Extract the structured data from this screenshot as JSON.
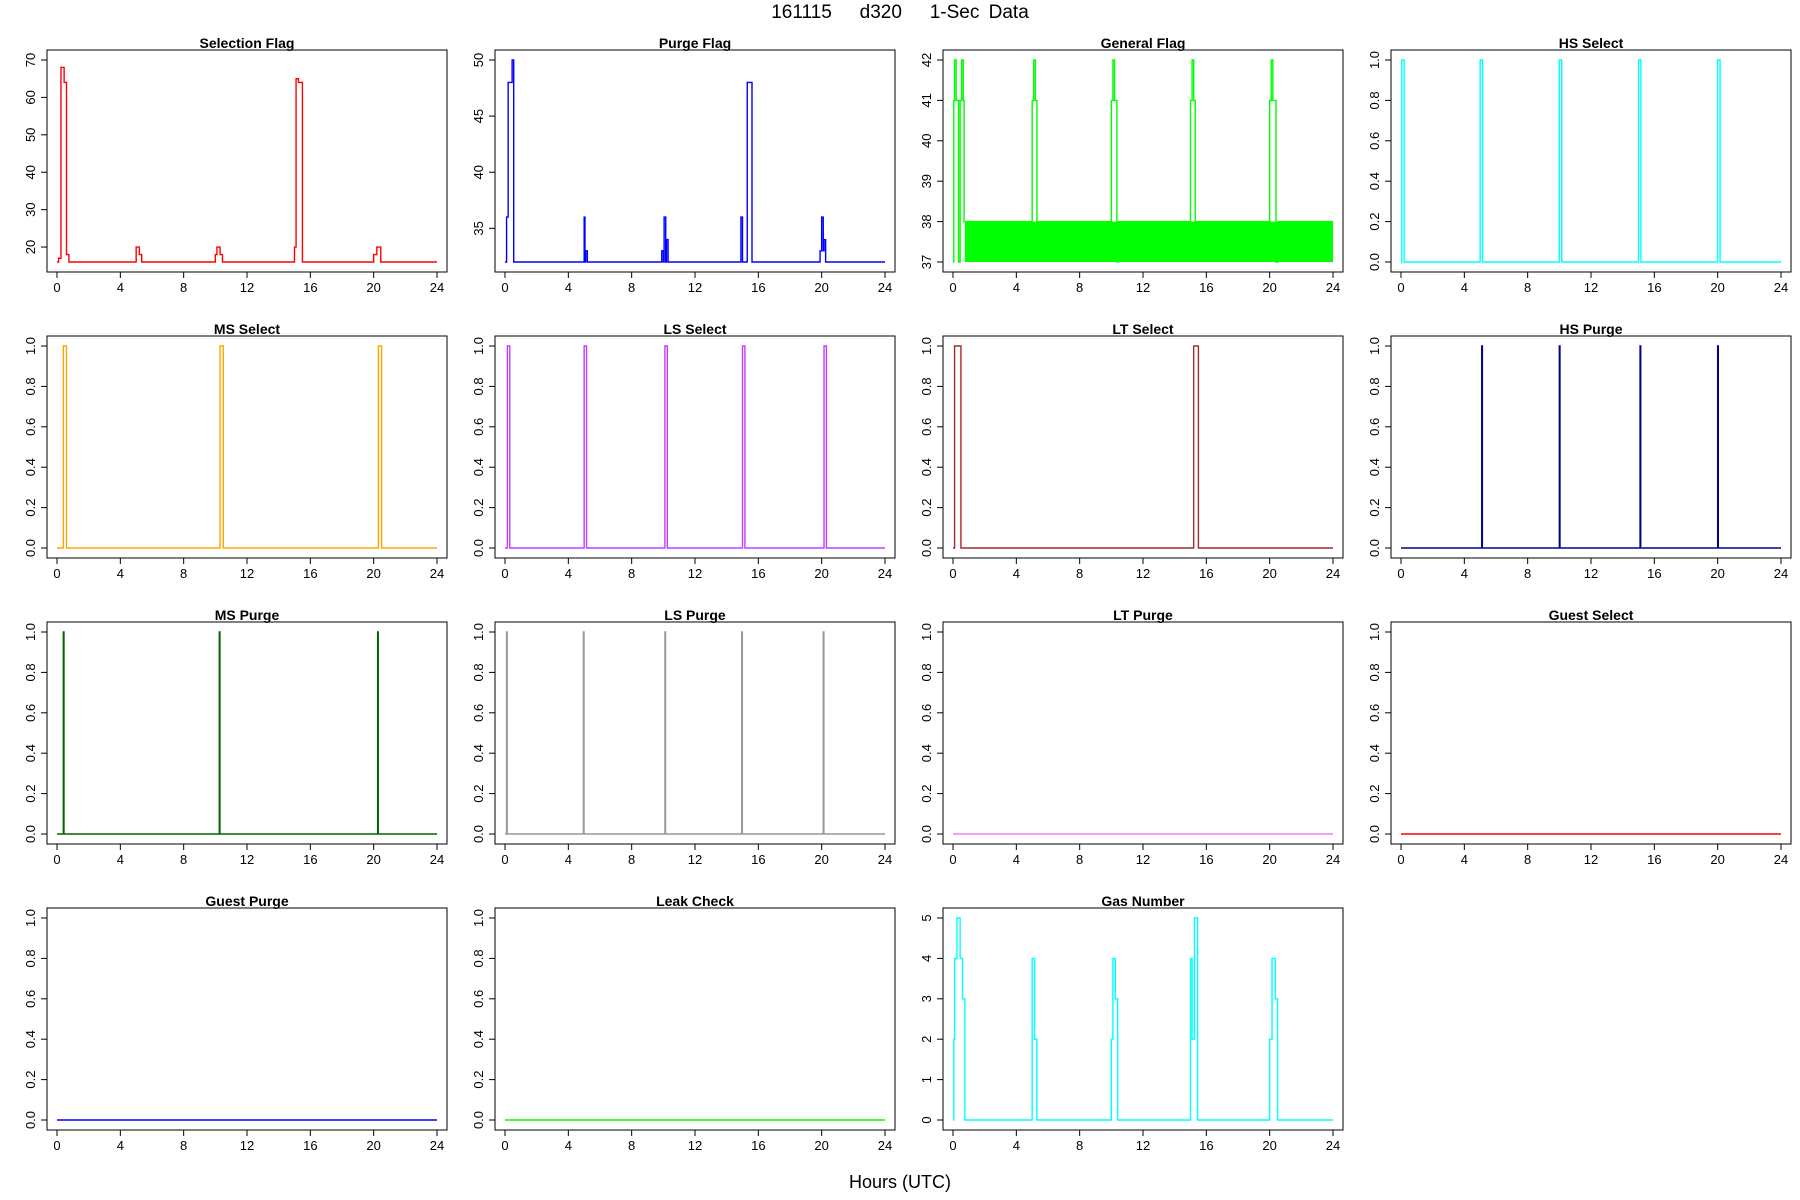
{
  "page": {
    "title": "161115   d320   1-Sec Data",
    "xlabel": "Hours (UTC)"
  },
  "chart_data": [
    {
      "type": "line",
      "title": "Selection Flag",
      "color": "#ff0000",
      "xlim": [
        0,
        24
      ],
      "ylim": [
        16,
        70
      ],
      "xticks": [
        0,
        4,
        8,
        12,
        16,
        20,
        24
      ],
      "yticks": [
        20,
        30,
        40,
        50,
        60,
        70
      ],
      "x": [
        0,
        0.1,
        0.1,
        0.25,
        0.25,
        0.45,
        0.45,
        0.6,
        0.6,
        0.75,
        0.75,
        5.0,
        5.0,
        5.2,
        5.2,
        5.35,
        5.35,
        10.0,
        10.0,
        10.1,
        10.1,
        10.3,
        10.3,
        10.45,
        10.45,
        15.0,
        15.0,
        15.1,
        15.1,
        15.25,
        15.25,
        15.5,
        15.5,
        20.0,
        20.0,
        20.2,
        20.2,
        20.45,
        20.45,
        24
      ],
      "y": [
        16,
        16,
        17,
        17,
        68,
        68,
        64,
        64,
        18,
        18,
        16,
        16,
        20,
        20,
        18,
        18,
        16,
        16,
        18,
        18,
        20,
        20,
        18,
        18,
        16,
        16,
        20,
        20,
        65,
        65,
        64,
        64,
        16,
        16,
        18,
        18,
        20,
        20,
        16,
        16
      ]
    },
    {
      "type": "line",
      "title": "Purge Flag",
      "color": "#0000ff",
      "xlim": [
        0,
        24
      ],
      "ylim": [
        32,
        50
      ],
      "xticks": [
        0,
        4,
        8,
        12,
        16,
        20,
        24
      ],
      "yticks": [
        35,
        40,
        45,
        50
      ],
      "x": [
        0,
        0.1,
        0.1,
        0.2,
        0.2,
        0.45,
        0.45,
        0.55,
        0.55,
        5.0,
        5.0,
        5.05,
        5.05,
        5.1,
        5.1,
        5.2,
        5.2,
        9.9,
        9.9,
        10.0,
        10.0,
        10.05,
        10.05,
        10.15,
        10.15,
        10.2,
        10.2,
        10.3,
        10.3,
        14.9,
        14.9,
        15.0,
        15.0,
        15.3,
        15.3,
        15.6,
        15.6,
        19.9,
        19.9,
        20.0,
        20.0,
        20.1,
        20.1,
        20.15,
        20.15,
        20.25,
        20.25,
        24
      ],
      "y": [
        32,
        32,
        36,
        36,
        48,
        48,
        50,
        50,
        32,
        32,
        36,
        36,
        32,
        32,
        33,
        33,
        32,
        32,
        33,
        33,
        32,
        32,
        36,
        36,
        32,
        32,
        34,
        34,
        32,
        32,
        36,
        36,
        32,
        32,
        48,
        48,
        32,
        32,
        33,
        33,
        36,
        36,
        33,
        33,
        34,
        34,
        32,
        32
      ]
    },
    {
      "type": "line",
      "title": "General Flag",
      "color": "#00ff00",
      "xlim": [
        0,
        24
      ],
      "ylim": [
        37,
        42
      ],
      "xticks": [
        0,
        4,
        8,
        12,
        16,
        20,
        24
      ],
      "yticks": [
        37,
        38,
        39,
        40,
        41,
        42
      ],
      "x": [
        0,
        0.05,
        0.05,
        0.1,
        0.1,
        0.2,
        0.2,
        0.35,
        0.35,
        0.45,
        0.45,
        0.55,
        0.55,
        0.65,
        0.65,
        0.7,
        0.7,
        5.0,
        5.0,
        5.1,
        5.1,
        5.2,
        5.2,
        5.3,
        5.3,
        10.0,
        10.0,
        10.1,
        10.1,
        10.2,
        10.2,
        10.35,
        10.35,
        10.45,
        10.45,
        15.0,
        15.0,
        15.1,
        15.1,
        15.2,
        15.2,
        15.3,
        15.3,
        20.0,
        20.0,
        20.1,
        20.1,
        20.2,
        20.2,
        20.4,
        20.4,
        20.55,
        20.55,
        24
      ],
      "y": [
        37,
        37,
        41,
        41,
        42,
        42,
        41,
        41,
        37,
        37,
        41,
        41,
        42,
        42,
        41,
        41,
        38,
        38,
        41,
        41,
        42,
        42,
        41,
        41,
        38,
        38,
        41,
        41,
        42,
        42,
        41,
        41,
        37,
        37,
        38,
        38,
        41,
        41,
        42,
        42,
        41,
        41,
        38,
        38,
        41,
        41,
        42,
        42,
        41,
        41,
        37,
        37,
        38,
        38
      ],
      "fill_between": [
        37,
        38
      ],
      "fill_x": [
        0.75,
        24
      ]
    },
    {
      "type": "line",
      "title": "HS Select",
      "color": "#00ffff",
      "xlim": [
        0,
        24
      ],
      "ylim": [
        0,
        1
      ],
      "xticks": [
        0,
        4,
        8,
        12,
        16,
        20,
        24
      ],
      "yticks": [
        0.0,
        0.2,
        0.4,
        0.6,
        0.8,
        1.0
      ],
      "x": [
        0,
        0.05,
        0.05,
        0.2,
        0.2,
        5.0,
        5.0,
        5.15,
        5.15,
        10.0,
        10.0,
        10.15,
        10.15,
        15.0,
        15.0,
        15.15,
        15.15,
        20.0,
        20.0,
        20.15,
        20.15,
        24
      ],
      "y": [
        0,
        0,
        1,
        1,
        0,
        0,
        1,
        1,
        0,
        0,
        1,
        1,
        0,
        0,
        1,
        1,
        0,
        0,
        1,
        1,
        0,
        0
      ]
    },
    {
      "type": "line",
      "title": "MS Select",
      "color": "#ffa500",
      "xlim": [
        0,
        24
      ],
      "ylim": [
        0,
        1
      ],
      "xticks": [
        0,
        4,
        8,
        12,
        16,
        20,
        24
      ],
      "yticks": [
        0.0,
        0.2,
        0.4,
        0.6,
        0.8,
        1.0
      ],
      "x": [
        0,
        0.4,
        0.4,
        0.6,
        0.6,
        10.3,
        10.3,
        10.5,
        10.5,
        20.3,
        20.3,
        20.5,
        20.5,
        24
      ],
      "y": [
        0,
        0,
        1,
        1,
        0,
        0,
        1,
        1,
        0,
        0,
        1,
        1,
        0,
        0
      ]
    },
    {
      "type": "line",
      "title": "LS Select",
      "color": "#bf3eff",
      "xlim": [
        0,
        24
      ],
      "ylim": [
        0,
        1
      ],
      "xticks": [
        0,
        4,
        8,
        12,
        16,
        20,
        24
      ],
      "yticks": [
        0.0,
        0.2,
        0.4,
        0.6,
        0.8,
        1.0
      ],
      "x": [
        0,
        0.15,
        0.15,
        0.3,
        0.3,
        5.0,
        5.0,
        5.15,
        5.15,
        10.1,
        10.1,
        10.25,
        10.25,
        15.0,
        15.0,
        15.15,
        15.15,
        20.15,
        20.15,
        20.3,
        20.3,
        24
      ],
      "y": [
        0,
        0,
        1,
        1,
        0,
        0,
        1,
        1,
        0,
        0,
        1,
        1,
        0,
        0,
        1,
        1,
        0,
        0,
        1,
        1,
        0,
        0
      ]
    },
    {
      "type": "line",
      "title": "LT Select",
      "color": "#a52a2a",
      "xlim": [
        0,
        24
      ],
      "ylim": [
        0,
        1
      ],
      "xticks": [
        0,
        4,
        8,
        12,
        16,
        20,
        24
      ],
      "yticks": [
        0.0,
        0.2,
        0.4,
        0.6,
        0.8,
        1.0
      ],
      "x": [
        0,
        0.1,
        0.1,
        0.5,
        0.5,
        15.2,
        15.2,
        15.5,
        15.5,
        24
      ],
      "y": [
        0,
        0,
        1,
        1,
        0,
        0,
        1,
        1,
        0,
        0
      ]
    },
    {
      "type": "line",
      "title": "HS Purge",
      "color": "#00008b",
      "xlim": [
        0,
        24
      ],
      "ylim": [
        0,
        1
      ],
      "xticks": [
        0,
        4,
        8,
        12,
        16,
        20,
        24
      ],
      "yticks": [
        0.0,
        0.2,
        0.4,
        0.6,
        0.8,
        1.0
      ],
      "x": [
        0,
        5.1,
        5.1,
        5.14,
        5.14,
        10.0,
        10.0,
        10.04,
        10.04,
        15.1,
        15.1,
        15.14,
        15.14,
        20.0,
        20.0,
        20.04,
        20.04,
        24
      ],
      "y": [
        0,
        0,
        1,
        1,
        0,
        0,
        1,
        1,
        0,
        0,
        1,
        1,
        0,
        0,
        1,
        1,
        0,
        0
      ]
    },
    {
      "type": "line",
      "title": "MS Purge",
      "color": "#006400",
      "xlim": [
        0,
        24
      ],
      "ylim": [
        0,
        1
      ],
      "xticks": [
        0,
        4,
        8,
        12,
        16,
        20,
        24
      ],
      "yticks": [
        0.0,
        0.2,
        0.4,
        0.6,
        0.8,
        1.0
      ],
      "x": [
        0,
        0.4,
        0.4,
        0.44,
        0.44,
        10.25,
        10.25,
        10.29,
        10.29,
        20.25,
        20.25,
        20.29,
        20.29,
        24
      ],
      "y": [
        0,
        0,
        1,
        1,
        0,
        0,
        1,
        1,
        0,
        0,
        1,
        1,
        0,
        0
      ]
    },
    {
      "type": "line",
      "title": "LS Purge",
      "color": "#999999",
      "xlim": [
        0,
        24
      ],
      "ylim": [
        0,
        1
      ],
      "xticks": [
        0,
        4,
        8,
        12,
        16,
        20,
        24
      ],
      "yticks": [
        0.0,
        0.2,
        0.4,
        0.6,
        0.8,
        1.0
      ],
      "x": [
        0,
        0.1,
        0.1,
        0.14,
        0.14,
        4.95,
        4.95,
        4.99,
        4.99,
        10.1,
        10.1,
        10.14,
        10.14,
        14.95,
        14.95,
        14.99,
        14.99,
        20.1,
        20.1,
        20.14,
        20.14,
        24
      ],
      "y": [
        0,
        0,
        1,
        1,
        0,
        0,
        1,
        1,
        0,
        0,
        1,
        1,
        0,
        0,
        1,
        1,
        0,
        0,
        1,
        1,
        0,
        0
      ]
    },
    {
      "type": "line",
      "title": "LT Purge",
      "color": "#ee82ee",
      "xlim": [
        0,
        24
      ],
      "ylim": [
        0,
        1
      ],
      "xticks": [
        0,
        4,
        8,
        12,
        16,
        20,
        24
      ],
      "yticks": [
        0.0,
        0.2,
        0.4,
        0.6,
        0.8,
        1.0
      ],
      "x": [
        0,
        24
      ],
      "y": [
        0,
        0
      ]
    },
    {
      "type": "line",
      "title": "Guest Select",
      "color": "#ff0000",
      "xlim": [
        0,
        24
      ],
      "ylim": [
        0,
        1
      ],
      "xticks": [
        0,
        4,
        8,
        12,
        16,
        20,
        24
      ],
      "yticks": [
        0.0,
        0.2,
        0.4,
        0.6,
        0.8,
        1.0
      ],
      "x": [
        0,
        24
      ],
      "y": [
        0,
        0
      ]
    },
    {
      "type": "line",
      "title": "Guest Purge",
      "color": "#0000ff",
      "xlim": [
        0,
        24
      ],
      "ylim": [
        0,
        1
      ],
      "xticks": [
        0,
        4,
        8,
        12,
        16,
        20,
        24
      ],
      "yticks": [
        0.0,
        0.2,
        0.4,
        0.6,
        0.8,
        1.0
      ],
      "x": [
        0,
        24
      ],
      "y": [
        0,
        0
      ]
    },
    {
      "type": "line",
      "title": "Leak Check",
      "color": "#00ff00",
      "xlim": [
        0,
        24
      ],
      "ylim": [
        0,
        1
      ],
      "xticks": [
        0,
        4,
        8,
        12,
        16,
        20,
        24
      ],
      "yticks": [
        0.0,
        0.2,
        0.4,
        0.6,
        0.8,
        1.0
      ],
      "x": [
        0,
        24
      ],
      "y": [
        0,
        0
      ]
    },
    {
      "type": "line",
      "title": "Gas Number",
      "color": "#00ffff",
      "xlim": [
        0,
        24
      ],
      "ylim": [
        0,
        5
      ],
      "xticks": [
        0,
        4,
        8,
        12,
        16,
        20,
        24
      ],
      "yticks": [
        0,
        1,
        2,
        3,
        4,
        5
      ],
      "x": [
        0,
        0.05,
        0.05,
        0.1,
        0.1,
        0.25,
        0.25,
        0.45,
        0.45,
        0.6,
        0.6,
        0.75,
        0.75,
        5.0,
        5.0,
        5.15,
        5.15,
        5.3,
        5.3,
        10.0,
        10.0,
        10.1,
        10.1,
        10.25,
        10.25,
        10.4,
        10.4,
        15.0,
        15.0,
        15.1,
        15.1,
        15.25,
        15.25,
        15.45,
        15.45,
        20.0,
        20.0,
        20.15,
        20.15,
        20.35,
        20.35,
        20.5,
        20.5,
        24
      ],
      "y": [
        0,
        0,
        2,
        2,
        4,
        4,
        5,
        5,
        4,
        4,
        3,
        3,
        0,
        0,
        4,
        4,
        2,
        2,
        0,
        0,
        2,
        2,
        4,
        4,
        3,
        3,
        0,
        0,
        4,
        4,
        2,
        2,
        5,
        5,
        0,
        0,
        2,
        2,
        4,
        4,
        3,
        3,
        0,
        0
      ]
    }
  ]
}
